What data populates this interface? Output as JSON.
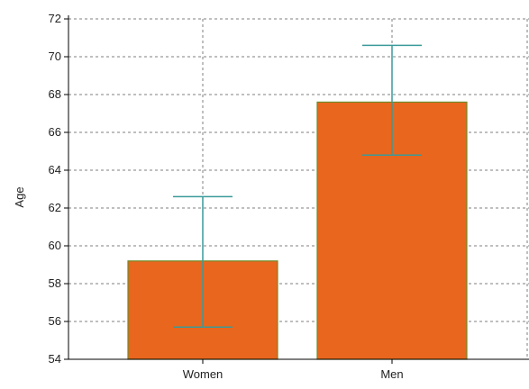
{
  "chart_data": {
    "type": "bar",
    "title": "",
    "xlabel": "",
    "ylabel": "Age",
    "categories": [
      "Women",
      "Men"
    ],
    "values": [
      59.2,
      67.6
    ],
    "error_bars": [
      {
        "lower": 55.7,
        "upper": 62.6
      },
      {
        "lower": 64.8,
        "upper": 70.6
      }
    ],
    "ylim": [
      54,
      72
    ],
    "yticks": [
      54,
      56,
      58,
      60,
      62,
      64,
      66,
      68,
      70,
      72
    ],
    "grid": true,
    "legend": "none",
    "colors": {
      "bar_fill": "#e8661d",
      "bar_stroke": "#6f8a2a",
      "error_bar": "#3a9a9a",
      "grid": "#7f7f7f",
      "axis": "#000000"
    }
  }
}
